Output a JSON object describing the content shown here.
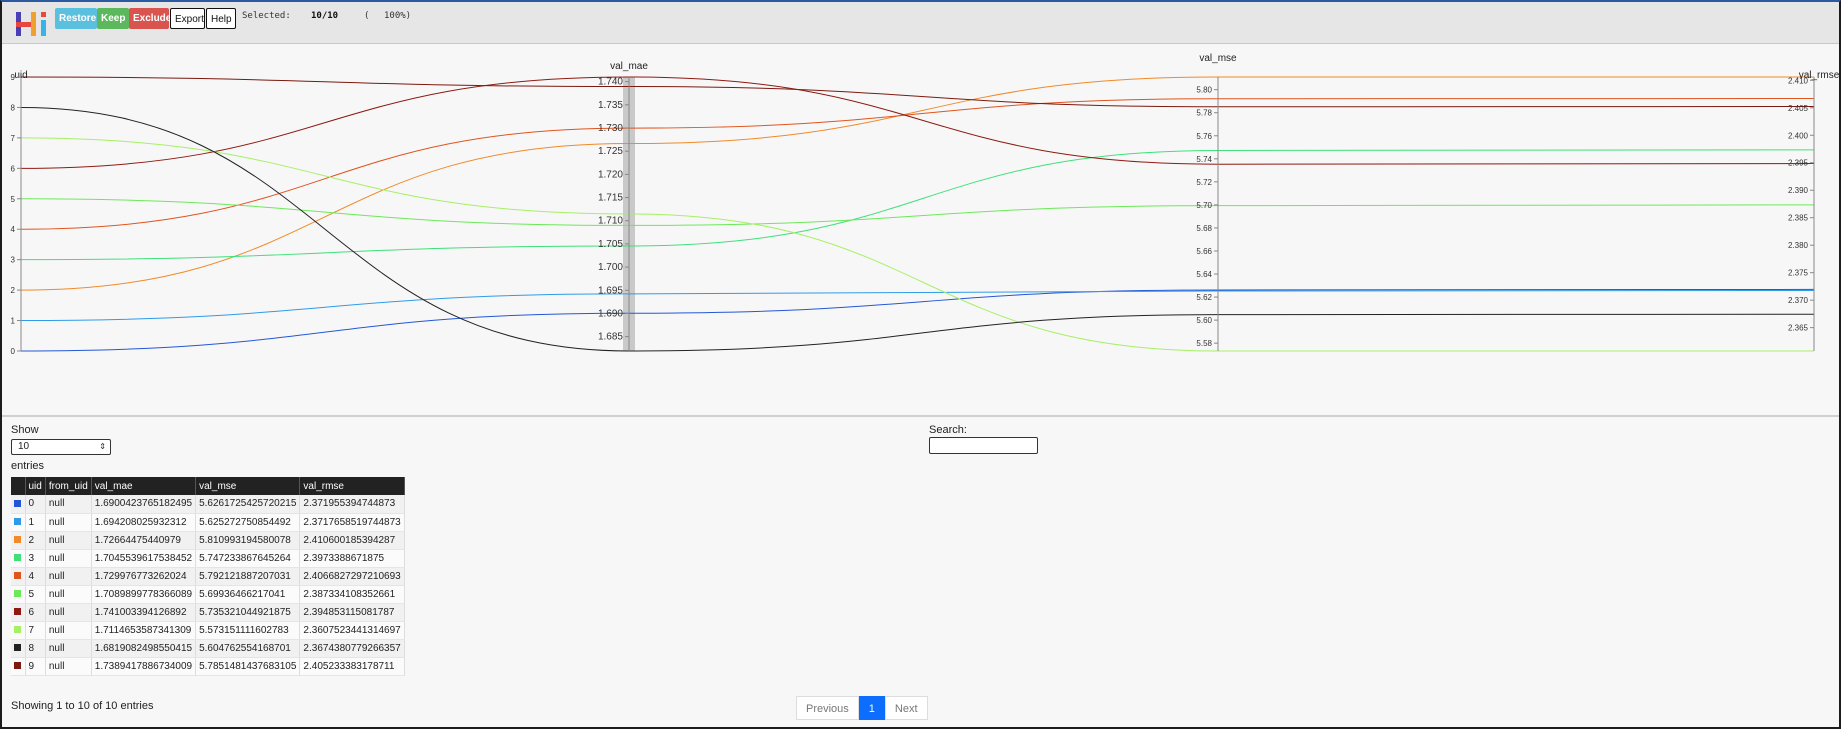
{
  "app": {
    "logo_text": "Hi"
  },
  "toolbar": {
    "restore": "Restore",
    "keep": "Keep",
    "exclude": "Exclude",
    "export": "Export",
    "help": "Help",
    "selected_label": "Selected:",
    "selected_count": "10/10",
    "paren": "(",
    "percent": "100%)"
  },
  "chart_data": {
    "type": "parallel-coordinates",
    "axes": [
      {
        "name": "uid",
        "label": "uid",
        "range": [
          0,
          9
        ],
        "ticks": [
          "0",
          "1",
          "2",
          "3",
          "4",
          "5",
          "6",
          "7",
          "8",
          "9"
        ]
      },
      {
        "name": "val_mae",
        "label": "val_mae",
        "range": [
          1.6819,
          1.741
        ],
        "ticks": [
          "1.685",
          "1.690",
          "1.695",
          "1.700",
          "1.705",
          "1.710",
          "1.715",
          "1.720",
          "1.725",
          "1.730",
          "1.735",
          "1.740"
        ]
      },
      {
        "name": "val_mse",
        "label": "val_mse",
        "range": [
          5.5732,
          5.811
        ],
        "ticks": [
          "5.58",
          "5.60",
          "5.62",
          "5.64",
          "5.66",
          "5.68",
          "5.70",
          "5.72",
          "5.74",
          "5.76",
          "5.78",
          "5.80"
        ]
      },
      {
        "name": "val_rmse",
        "label": "val_rmse",
        "range": [
          2.36075,
          2.4106
        ],
        "ticks": [
          "2.365",
          "2.370",
          "2.375",
          "2.380",
          "2.385",
          "2.390",
          "2.395",
          "2.400",
          "2.405",
          "2.410"
        ]
      }
    ],
    "series": [
      {
        "uid": 0,
        "color": "#2457d6",
        "values": [
          0,
          1.6900423765182495,
          5.6261725425720215,
          2.371955394744873
        ]
      },
      {
        "uid": 1,
        "color": "#2f9be8",
        "values": [
          1,
          1.694208025932312,
          5.625272750854492,
          2.3717658519744873
        ]
      },
      {
        "uid": 2,
        "color": "#f08a2a",
        "values": [
          2,
          1.72664475440979,
          5.810993194580078,
          2.410600185394287
        ]
      },
      {
        "uid": 3,
        "color": "#3fe07a",
        "values": [
          3,
          1.7045539617538452,
          5.747233867645264,
          2.3973388671875
        ]
      },
      {
        "uid": 4,
        "color": "#e0541e",
        "values": [
          4,
          1.729976773262024,
          5.792121887207031,
          2.4066827297210693
        ]
      },
      {
        "uid": 5,
        "color": "#6de85a",
        "values": [
          5,
          1.7089899778366089,
          5.69936466217041,
          2.387334108352661
        ]
      },
      {
        "uid": 6,
        "color": "#8e1a12",
        "values": [
          6,
          1.741003394126892,
          5.735321044921875,
          2.394853115081787
        ]
      },
      {
        "uid": 7,
        "color": "#a6f066",
        "values": [
          7,
          1.7114653587341309,
          5.573151111602783,
          2.3607523441314697
        ]
      },
      {
        "uid": 8,
        "color": "#222222",
        "values": [
          8,
          1.6819082498550415,
          5.604762554168701,
          2.3674380779266357
        ]
      },
      {
        "uid": 9,
        "color": "#7a1a10",
        "values": [
          9,
          1.7389417886734009,
          5.7851481437683105,
          2.405233383178711
        ]
      }
    ]
  },
  "table": {
    "show_label": "Show",
    "page_size": "10",
    "entries_label": "entries",
    "search_label": "Search:",
    "columns": [
      "",
      "uid",
      "from_uid",
      "val_mae",
      "val_mse",
      "val_rmse"
    ],
    "rows": [
      {
        "color": "#2457d6",
        "uid": "0",
        "from_uid": "null",
        "val_mae": "1.6900423765182495",
        "val_mse": "5.6261725425720215",
        "val_rmse": "2.371955394744873"
      },
      {
        "color": "#2f9be8",
        "uid": "1",
        "from_uid": "null",
        "val_mae": "1.694208025932312",
        "val_mse": "5.625272750854492",
        "val_rmse": "2.3717658519744873"
      },
      {
        "color": "#f08a2a",
        "uid": "2",
        "from_uid": "null",
        "val_mae": "1.72664475440979",
        "val_mse": "5.810993194580078",
        "val_rmse": "2.410600185394287"
      },
      {
        "color": "#3fe07a",
        "uid": "3",
        "from_uid": "null",
        "val_mae": "1.7045539617538452",
        "val_mse": "5.747233867645264",
        "val_rmse": "2.3973388671875"
      },
      {
        "color": "#e0541e",
        "uid": "4",
        "from_uid": "null",
        "val_mae": "1.729976773262024",
        "val_mse": "5.792121887207031",
        "val_rmse": "2.4066827297210693"
      },
      {
        "color": "#6de85a",
        "uid": "5",
        "from_uid": "null",
        "val_mae": "1.7089899778366089",
        "val_mse": "5.69936466217041",
        "val_rmse": "2.387334108352661"
      },
      {
        "color": "#8e1a12",
        "uid": "6",
        "from_uid": "null",
        "val_mae": "1.741003394126892",
        "val_mse": "5.735321044921875",
        "val_rmse": "2.394853115081787"
      },
      {
        "color": "#a6f066",
        "uid": "7",
        "from_uid": "null",
        "val_mae": "1.7114653587341309",
        "val_mse": "5.573151111602783",
        "val_rmse": "2.3607523441314697"
      },
      {
        "color": "#222222",
        "uid": "8",
        "from_uid": "null",
        "val_mae": "1.6819082498550415",
        "val_mse": "5.604762554168701",
        "val_rmse": "2.3674380779266357"
      },
      {
        "color": "#7a1a10",
        "uid": "9",
        "from_uid": "null",
        "val_mae": "1.7389417886734009",
        "val_mse": "5.7851481437683105",
        "val_rmse": "2.405233383178711"
      }
    ],
    "showing_text": "Showing 1 to 10 of 10 entries",
    "pager": {
      "previous": "Previous",
      "page": "1",
      "next": "Next"
    }
  }
}
